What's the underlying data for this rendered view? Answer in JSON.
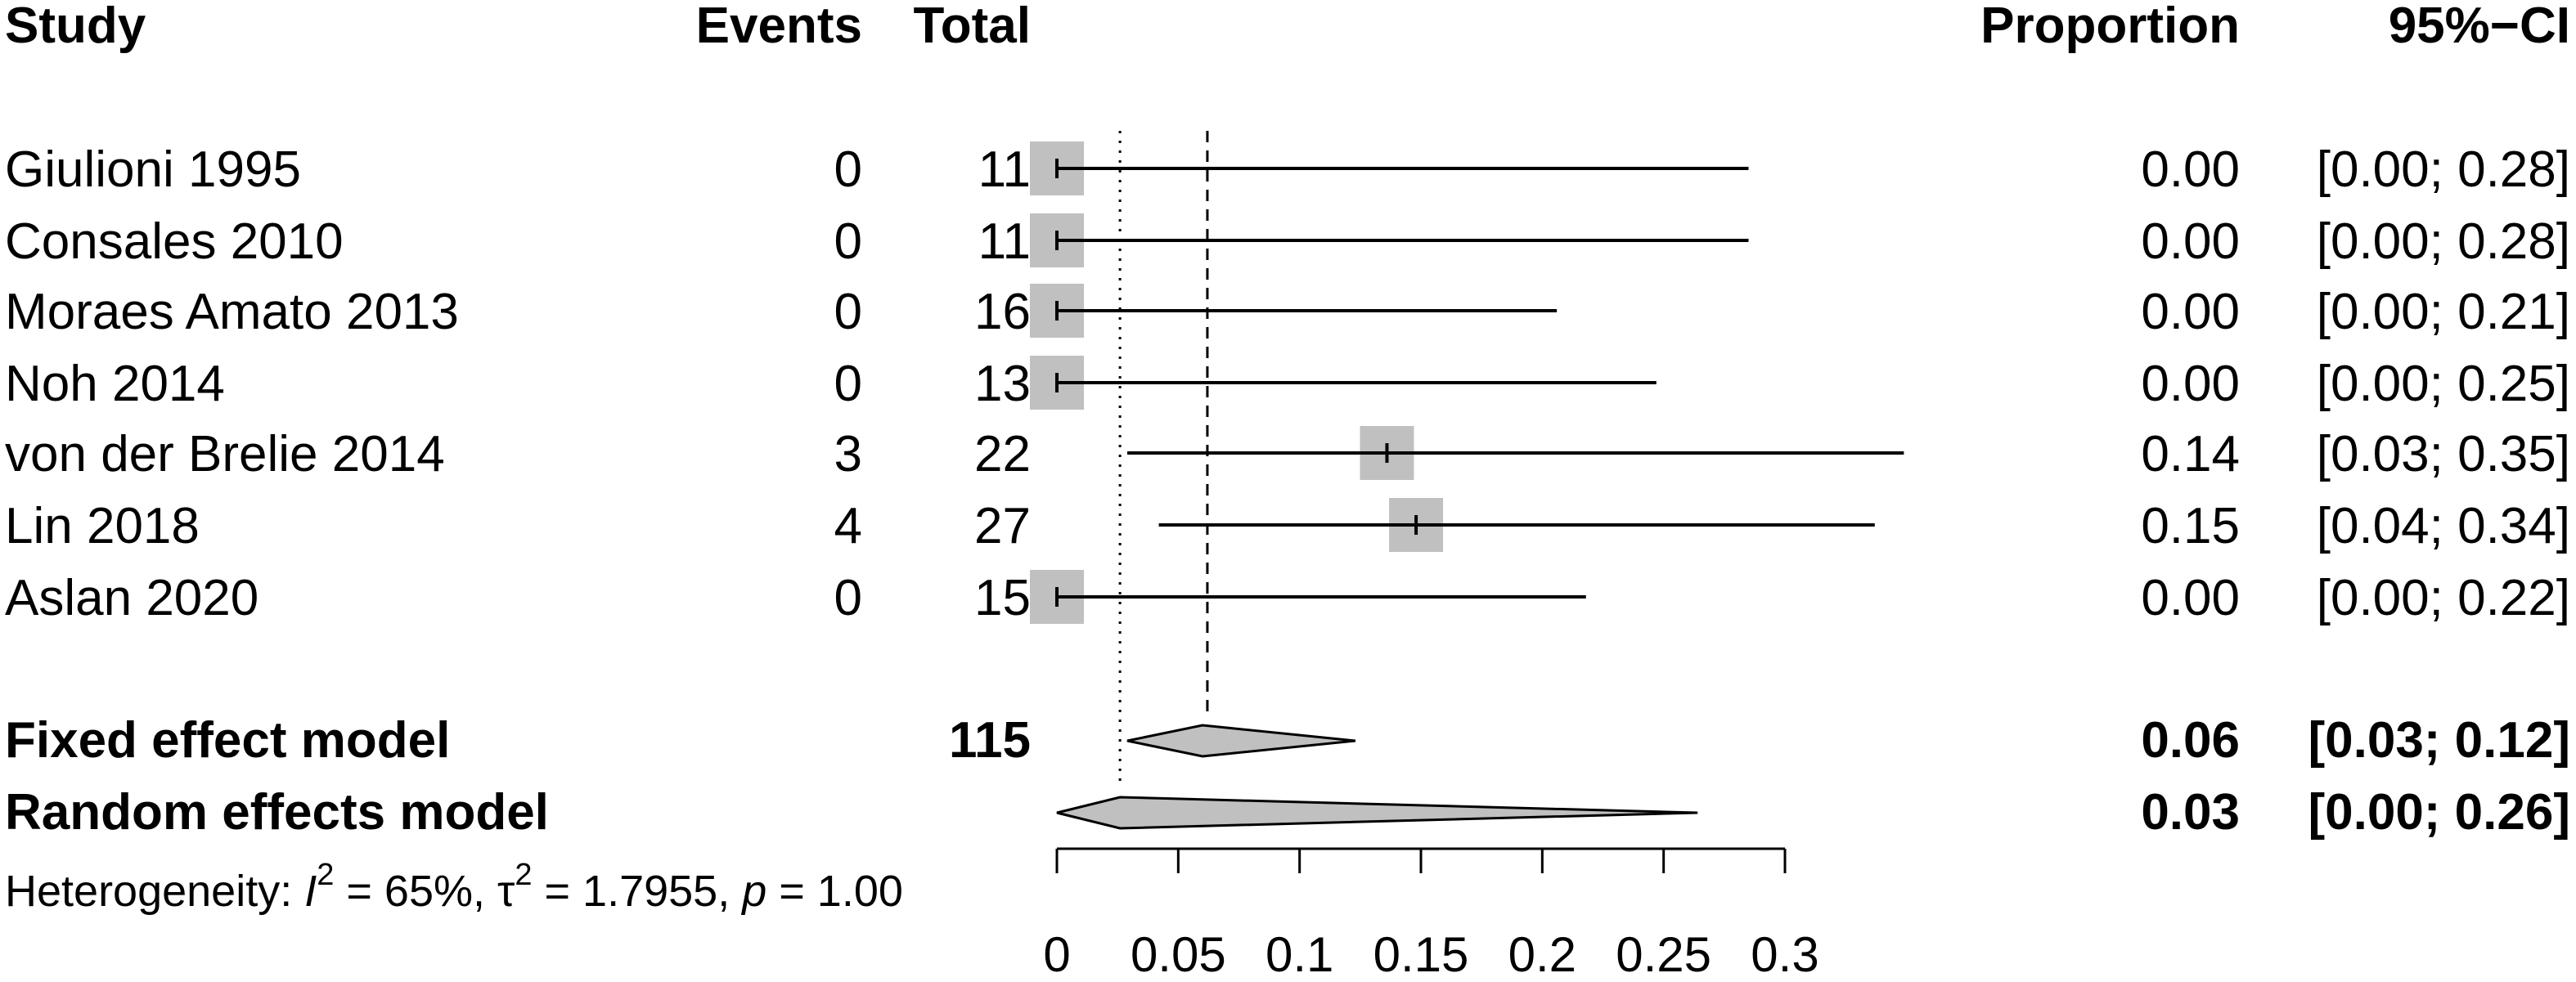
{
  "headers": {
    "study": "Study",
    "events": "Events",
    "total": "Total",
    "proportion": "Proportion",
    "ci": "95%−CI"
  },
  "studies": [
    {
      "name": "Giulioni 1995",
      "events": "0",
      "total": "11",
      "prop": "0.00",
      "ci": "[0.00; 0.28]"
    },
    {
      "name": "Consales 2010",
      "events": "0",
      "total": "11",
      "prop": "0.00",
      "ci": "[0.00; 0.28]"
    },
    {
      "name": "Moraes Amato 2013",
      "events": "0",
      "total": "16",
      "prop": "0.00",
      "ci": "[0.00; 0.21]"
    },
    {
      "name": "Noh 2014",
      "events": "0",
      "total": "13",
      "prop": "0.00",
      "ci": "[0.00; 0.25]"
    },
    {
      "name": "von der Brelie 2014",
      "events": "3",
      "total": "22",
      "prop": "0.14",
      "ci": "[0.03; 0.35]"
    },
    {
      "name": "Lin 2018",
      "events": "4",
      "total": "27",
      "prop": "0.15",
      "ci": "[0.04; 0.34]"
    },
    {
      "name": "Aslan 2020",
      "events": "0",
      "total": "15",
      "prop": "0.00",
      "ci": "[0.00; 0.22]"
    }
  ],
  "summary": {
    "fixed": {
      "label": "Fixed effect model",
      "total": "115",
      "prop": "0.06",
      "ci": "[0.03; 0.12]"
    },
    "random": {
      "label": "Random effects model",
      "prop": "0.03",
      "ci": "[0.00; 0.26]"
    }
  },
  "heterogeneity": {
    "prefix": "Heterogeneity: ",
    "i_sym": "I",
    "sup2": "2",
    "i_val": " = 65%, ",
    "tau_sym": "τ",
    "tau_val": " = 1.7955, ",
    "p_sym": "p",
    "p_val": " = 1.00"
  },
  "colors": {
    "box": "#c0c0c0",
    "diamond": "#c0c0c0",
    "line": "#000000"
  },
  "chart_data": {
    "type": "forest",
    "axis_ticks": [
      0,
      0.05,
      0.1,
      0.15,
      0.2,
      0.25,
      0.3
    ],
    "axis_tick_labels": [
      "0",
      "0.05",
      "0.1",
      "0.15",
      "0.2",
      "0.25",
      "0.3"
    ],
    "xlim": [
      0,
      0.3
    ],
    "studies": [
      {
        "name": "Giulioni 1995",
        "estimate": 0.0,
        "lower": 0.0,
        "upper": 0.285,
        "weight": 1.0
      },
      {
        "name": "Consales 2010",
        "estimate": 0.0,
        "lower": 0.0,
        "upper": 0.285,
        "weight": 1.0
      },
      {
        "name": "Moraes Amato 2013",
        "estimate": 0.0,
        "lower": 0.0,
        "upper": 0.206,
        "weight": 1.0
      },
      {
        "name": "Noh 2014",
        "estimate": 0.0,
        "lower": 0.0,
        "upper": 0.247,
        "weight": 1.0
      },
      {
        "name": "von der Brelie 2014",
        "estimate": 0.136,
        "lower": 0.029,
        "upper": 0.349,
        "weight": 1.0
      },
      {
        "name": "Lin 2018",
        "estimate": 0.148,
        "lower": 0.042,
        "upper": 0.337,
        "weight": 1.0
      },
      {
        "name": "Aslan 2020",
        "estimate": 0.0,
        "lower": 0.0,
        "upper": 0.218,
        "weight": 1.0
      }
    ],
    "fixed_effect": {
      "estimate": 0.06,
      "lower": 0.029,
      "upper": 0.123
    },
    "random_effects": {
      "estimate": 0.026,
      "lower": 0.0,
      "upper": 0.264
    },
    "reference_lines": [
      {
        "value": 0.026,
        "style": "dotted"
      },
      {
        "value": 0.062,
        "style": "dashed"
      }
    ]
  }
}
